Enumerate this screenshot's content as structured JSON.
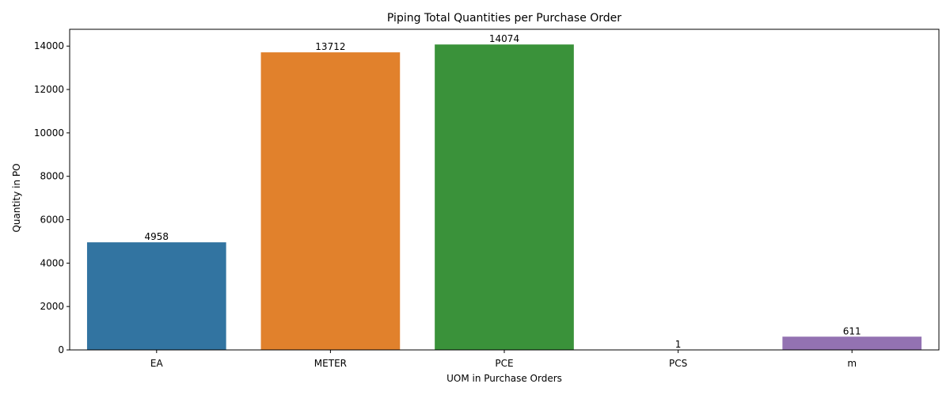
{
  "chart_data": {
    "type": "bar",
    "title": "Piping Total Quantities per Purchase Order",
    "xlabel": "UOM in Purchase Orders",
    "ylabel": "Quantity in PO",
    "categories": [
      "EA",
      "METER",
      "PCE",
      "PCS",
      "m"
    ],
    "values": [
      4958,
      13712,
      14074,
      1,
      611
    ],
    "data_labels": [
      "4958",
      "13712",
      "14074",
      "1",
      "611"
    ],
    "colors": [
      "#3274a1",
      "#e1812c",
      "#3a923a",
      "#c03d3e",
      "#9372b2"
    ],
    "ylim": [
      0,
      14774
    ],
    "yticks": [
      0,
      2000,
      4000,
      6000,
      8000,
      10000,
      12000,
      14000
    ],
    "ytick_labels": [
      "0",
      "2000",
      "4000",
      "6000",
      "8000",
      "10000",
      "12000",
      "14000"
    ],
    "grid": false,
    "legend": "none"
  }
}
